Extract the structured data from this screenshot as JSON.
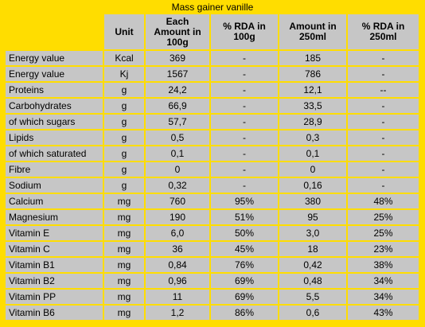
{
  "title": "Mass gainer vanille",
  "headers": [
    "",
    "Unit",
    "Each Amount in 100g",
    "% RDA in 100g",
    "Amount in 250ml",
    "% RDA in 250ml"
  ],
  "rows": [
    [
      "Energy value",
      "Kcal",
      "369",
      "-",
      "185",
      "-"
    ],
    [
      "Energy value",
      "Kj",
      "1567",
      "-",
      "786",
      "-"
    ],
    [
      "Proteins",
      "g",
      "24,2",
      "-",
      "12,1",
      "--"
    ],
    [
      "Carbohydrates",
      "g",
      "66,9",
      "-",
      "33,5",
      "-"
    ],
    [
      "of which sugars",
      "g",
      "57,7",
      "-",
      "28,9",
      "-"
    ],
    [
      "Lipids",
      "g",
      "0,5",
      "-",
      "0,3",
      "-"
    ],
    [
      "of which saturated",
      "g",
      "0,1",
      "-",
      "0,1",
      "-"
    ],
    [
      "Fibre",
      "g",
      "0",
      "-",
      "0",
      "-"
    ],
    [
      "Sodium",
      "g",
      "0,32",
      "-",
      "0,16",
      "-"
    ],
    [
      "Calcium",
      "mg",
      "760",
      "95%",
      "380",
      "48%"
    ],
    [
      "Magnesium",
      "mg",
      "190",
      "51%",
      "95",
      "25%"
    ],
    [
      "Vitamin E",
      "mg",
      "6,0",
      "50%",
      "3,0",
      "25%"
    ],
    [
      "Vitamin C",
      "mg",
      "36",
      "45%",
      "18",
      "23%"
    ],
    [
      "Vitamin B1",
      "mg",
      "0,84",
      "76%",
      "0,42",
      "38%"
    ],
    [
      "Vitamin B2",
      "mg",
      "0,96",
      "69%",
      "0,48",
      "34%"
    ],
    [
      "Vitamin PP",
      "mg",
      "11",
      "69%",
      "5,5",
      "34%"
    ],
    [
      "Vitamin B6",
      "mg",
      "1,2",
      "86%",
      "0,6",
      "43%"
    ]
  ],
  "colors": {
    "background": "#FFDD00",
    "cell": "#C6C6C6"
  }
}
